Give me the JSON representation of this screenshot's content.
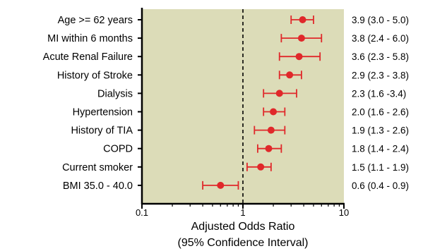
{
  "chart_data": {
    "type": "forest",
    "title": "",
    "xlabel": "Adjusted Odds Ratio",
    "xlabel_line2": "(95% Confidence Interval)",
    "x_scale": "log",
    "xlim": [
      0.1,
      10
    ],
    "x_ticks": [
      {
        "value": 0.1,
        "label": "0.1"
      },
      {
        "value": 1,
        "label": "1"
      },
      {
        "value": 10,
        "label": "10"
      }
    ],
    "reference_line": 1,
    "grid": false,
    "plot_background": "#dcdcb8",
    "marker_color": "#e0282a",
    "items": [
      {
        "label": "Age >= 62 years",
        "or": 3.9,
        "low": 3.0,
        "high": 5.0,
        "ci_text": "3.9 (3.0 - 5.0)"
      },
      {
        "label": "MI within 6 months",
        "or": 3.8,
        "low": 2.4,
        "high": 6.0,
        "ci_text": "3.8 (2.4 - 6.0)"
      },
      {
        "label": "Acute Renal Failure",
        "or": 3.6,
        "low": 2.3,
        "high": 5.8,
        "ci_text": "3.6 (2.3 - 5.8)"
      },
      {
        "label": "History of Stroke",
        "or": 2.9,
        "low": 2.3,
        "high": 3.8,
        "ci_text": "2.9 (2.3 - 3.8)"
      },
      {
        "label": "Dialysis",
        "or": 2.3,
        "low": 1.6,
        "high": 3.4,
        "ci_text": "2.3 (1.6 -3.4)"
      },
      {
        "label": "Hypertension",
        "or": 2.0,
        "low": 1.6,
        "high": 2.6,
        "ci_text": "2.0 (1.6 - 2.6)"
      },
      {
        "label": "History of TIA",
        "or": 1.9,
        "low": 1.3,
        "high": 2.6,
        "ci_text": "1.9 (1.3 - 2.6)"
      },
      {
        "label": "COPD",
        "or": 1.8,
        "low": 1.4,
        "high": 2.4,
        "ci_text": "1.8 (1.4 - 2.4)"
      },
      {
        "label": "Current smoker",
        "or": 1.5,
        "low": 1.1,
        "high": 1.9,
        "ci_text": "1.5 (1.1 - 1.9)"
      },
      {
        "label": "BMI 35.0 - 40.0",
        "or": 0.6,
        "low": 0.4,
        "high": 0.9,
        "ci_text": "0.6 (0.4 - 0.9)"
      }
    ]
  }
}
